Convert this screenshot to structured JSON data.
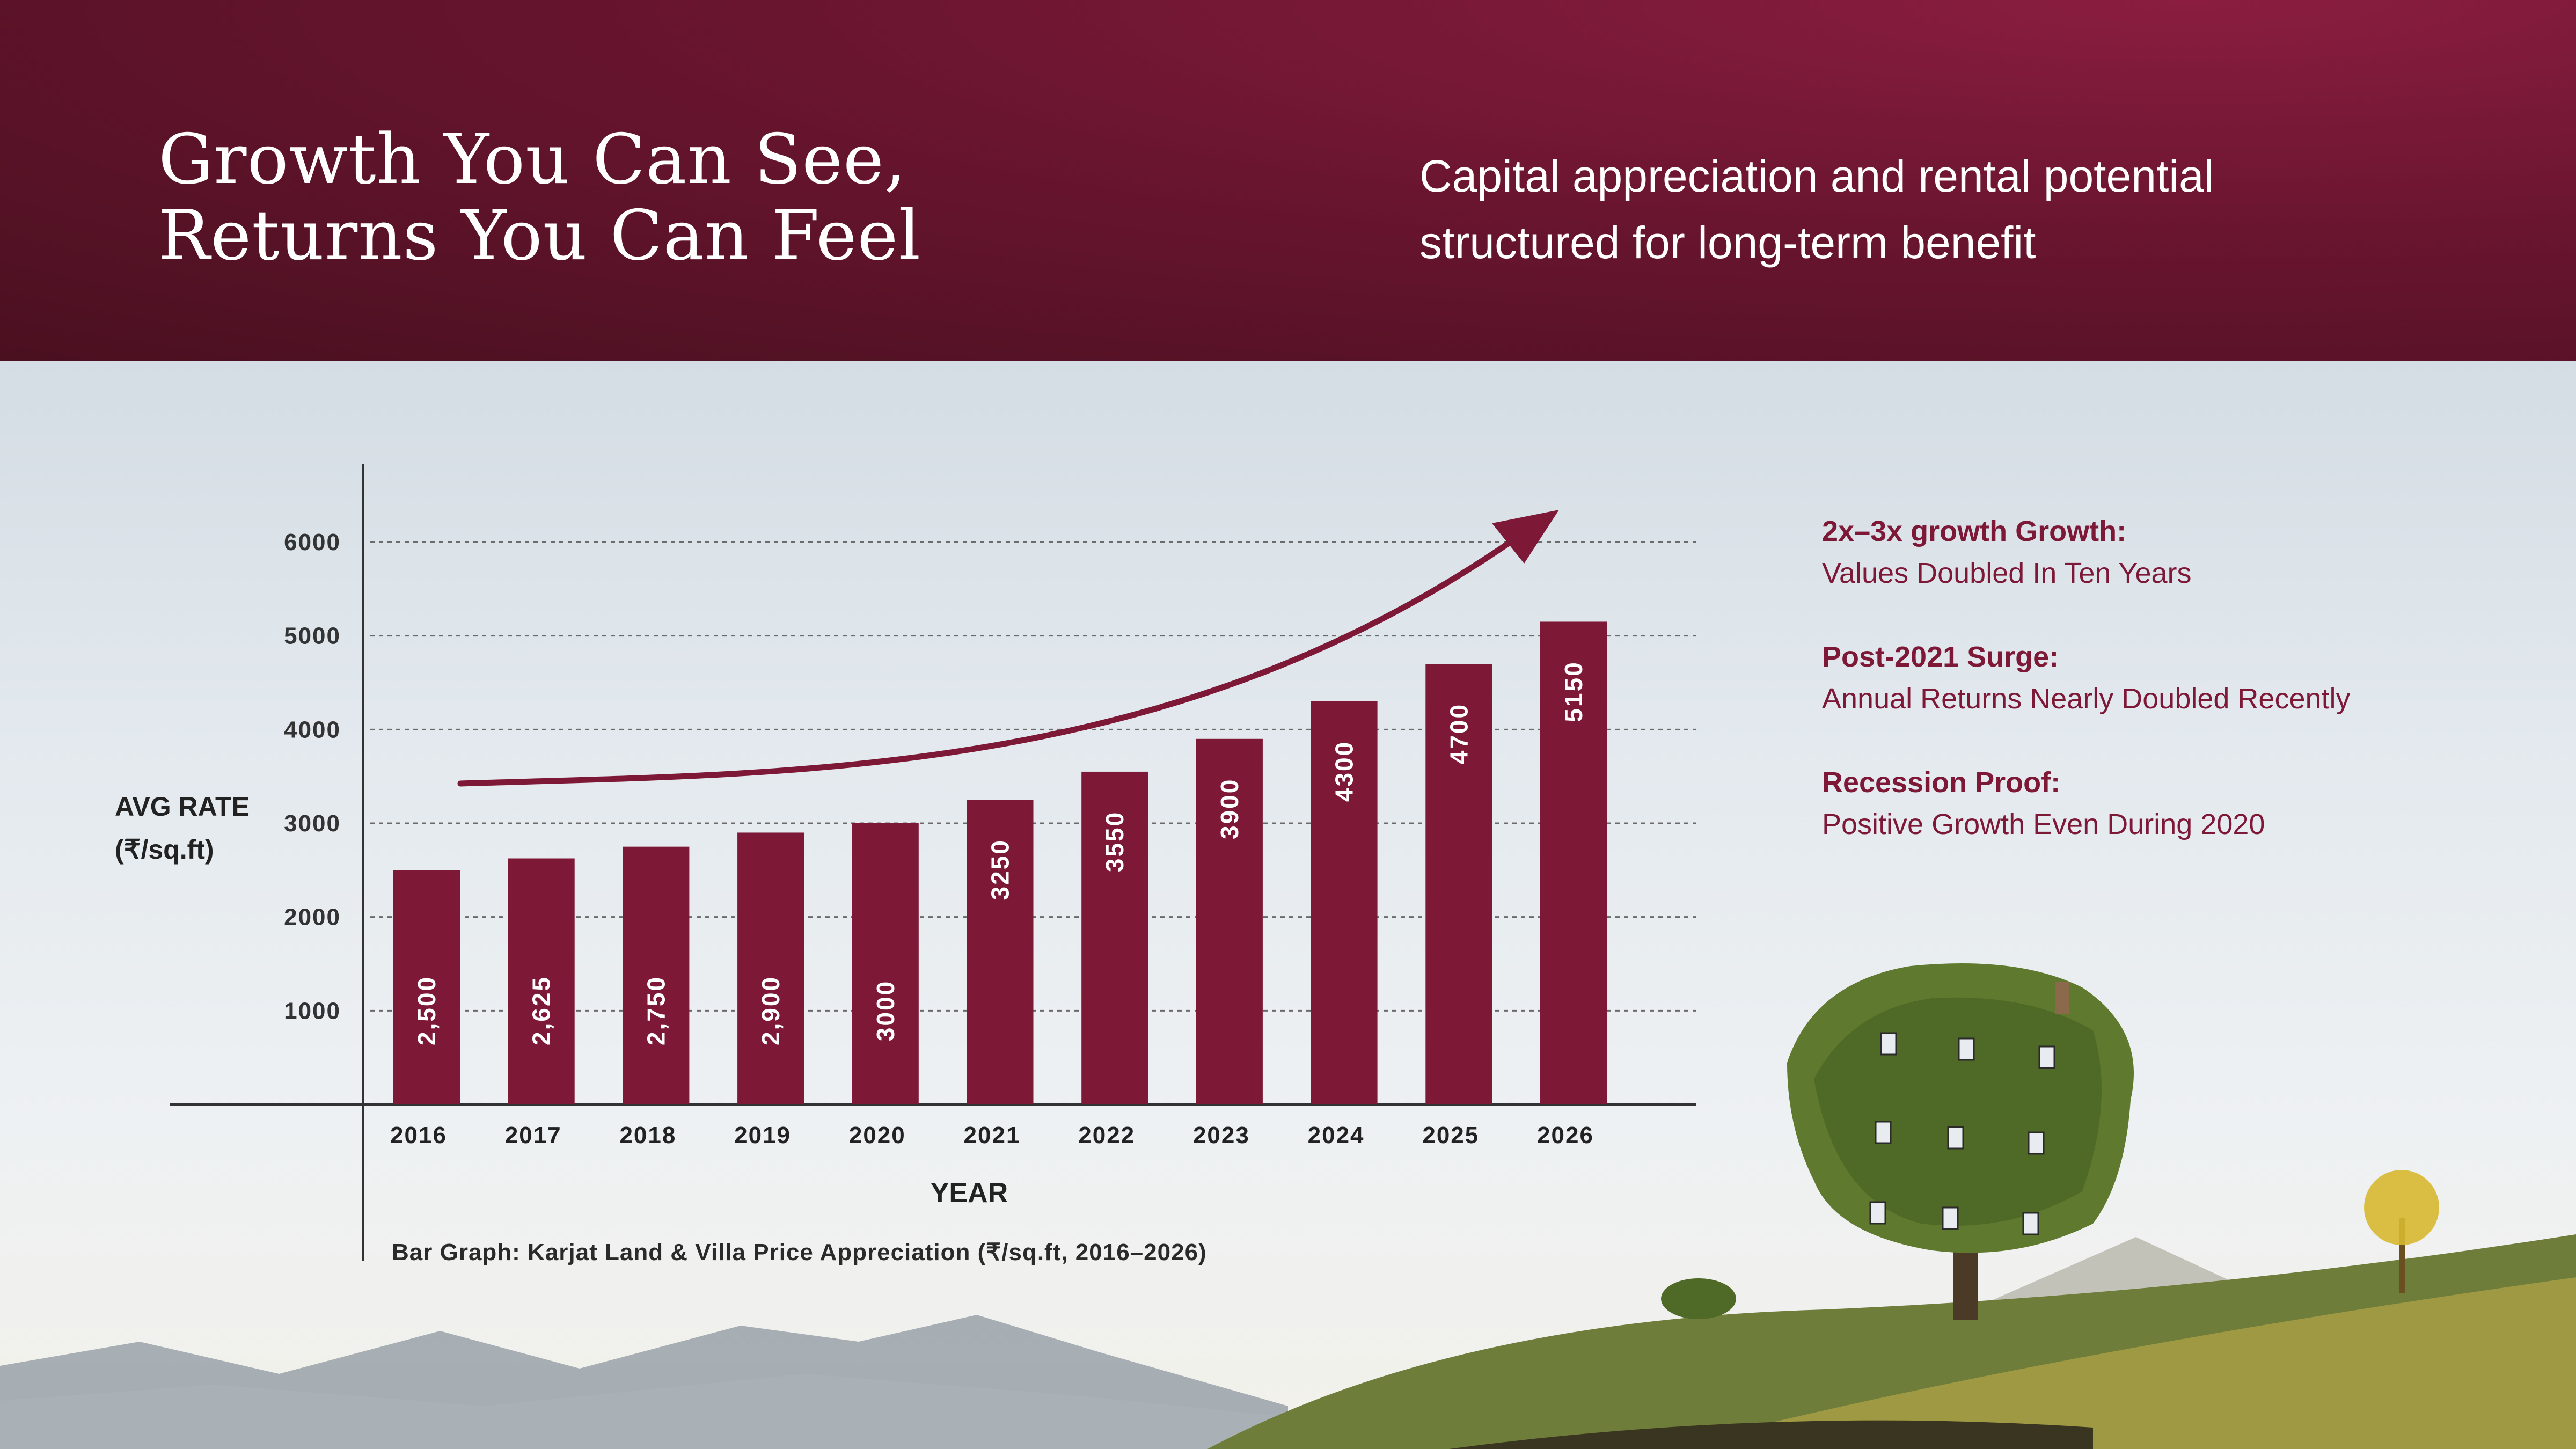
{
  "header": {
    "title_line1": "Growth You Can See,",
    "title_line2": "Returns You Can Feel",
    "subtitle_line1": "Capital appreciation and rental potential",
    "subtitle_line2": "structured for long-term benefit"
  },
  "highlights": [
    {
      "title": "2x–3x growth Growth:",
      "body": "Values Doubled In Ten Years"
    },
    {
      "title": "Post-2021 Surge:",
      "body": "Annual Returns Nearly Doubled Recently"
    },
    {
      "title": "Recession Proof:",
      "body": "Positive Growth Even During 2020"
    }
  ],
  "colors": {
    "brand": "#7d1837",
    "bar": "#7d1837",
    "header_bg": "#5a1227",
    "axis": "#333333",
    "text_dark": "#222222"
  },
  "chart_data": {
    "type": "bar",
    "title": "",
    "caption": "Bar Graph: Karjat Land & Villa Price Appreciation (₹/sq.ft, 2016–2026)",
    "xlabel": "YEAR",
    "ylabel_line1": "AVG RATE",
    "ylabel_line2": "(₹/sq.ft)",
    "categories": [
      "2016",
      "2017",
      "2018",
      "2019",
      "2020",
      "2021",
      "2022",
      "2023",
      "2024",
      "2025",
      "2026"
    ],
    "values": [
      2500,
      2625,
      2750,
      2900,
      3000,
      3250,
      3550,
      3900,
      4300,
      4700,
      5150
    ],
    "value_labels": [
      "2,500",
      "2,625",
      "2,750",
      "2,900",
      "3000",
      "3250",
      "3550",
      "3900",
      "4300",
      "4700",
      "5150"
    ],
    "yticks": [
      1000,
      2000,
      3000,
      4000,
      5000,
      6000
    ],
    "ytick_labels": [
      "1000",
      "2000",
      "3000",
      "4000",
      "5000",
      "6000"
    ],
    "ylim": [
      0,
      6000
    ],
    "grid": true,
    "trend_arrow": true
  }
}
